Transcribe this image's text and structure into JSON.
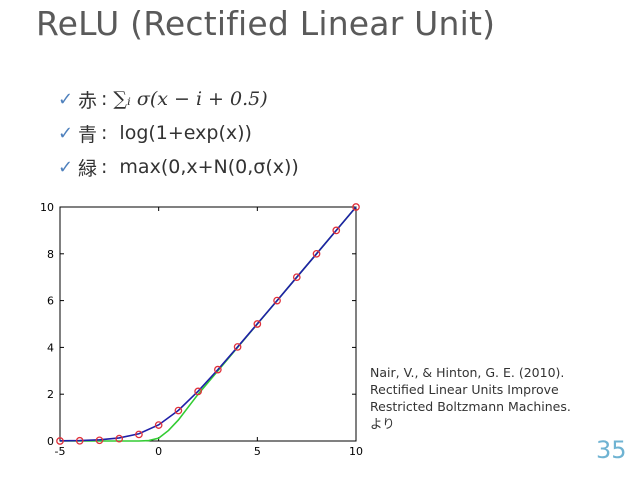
{
  "slide": {
    "title": "ReLU (Rectified Linear Unit)",
    "page_number": "35",
    "bullets": [
      {
        "check": "✓",
        "color_name": "赤",
        "sep": ":",
        "text": "∑ᵢ σ(x − i + 0.5)"
      },
      {
        "check": "✓",
        "color_name": "青",
        "sep": ":",
        "text": "log(1+exp(x))"
      },
      {
        "check": "✓",
        "color_name": "緑",
        "sep": ":",
        "text": "max(0,x+N(0,σ(x))"
      }
    ],
    "citation": [
      "Nair, V., & Hinton, G. E. (2010).",
      "Rectified Linear Units Improve",
      "Restricted Boltzmann Machines.",
      "より"
    ]
  },
  "colors": {
    "title": "#5a5a5a",
    "check": "#4f81bd",
    "page_number": "#6fb3d2",
    "red_series": "#e0303a",
    "blue_series": "#1f1fa8",
    "green_series": "#33cc33"
  },
  "chart_data": {
    "type": "line",
    "title": "",
    "xlabel": "",
    "ylabel": "",
    "xlim": [
      -5,
      10
    ],
    "ylim": [
      0,
      10
    ],
    "x_ticks": [
      "-5",
      "0",
      "5",
      "10"
    ],
    "y_ticks": [
      "0",
      "2",
      "4",
      "6",
      "8",
      "10"
    ],
    "grid": false,
    "series": [
      {
        "style": "markers",
        "color": "#e0303a",
        "x": [
          -5,
          -4,
          -3,
          -2,
          -1,
          0,
          1,
          2,
          3,
          4,
          5,
          6,
          7,
          8,
          9,
          10
        ],
        "y": [
          0.0,
          0.01,
          0.03,
          0.1,
          0.28,
          0.68,
          1.3,
          2.12,
          3.05,
          4.02,
          5.0,
          6.0,
          7.0,
          8.0,
          9.0,
          10.0
        ]
      },
      {
        "style": "line",
        "color": "#1f1fa8",
        "x": [
          -5,
          -4,
          -3,
          -2,
          -1,
          0,
          1,
          2,
          3,
          4,
          5,
          6,
          7,
          8,
          9,
          10
        ],
        "y": [
          0.01,
          0.02,
          0.05,
          0.13,
          0.31,
          0.69,
          1.31,
          2.13,
          3.05,
          4.02,
          5.01,
          6.0,
          7.0,
          8.0,
          9.0,
          10.0
        ]
      },
      {
        "style": "line",
        "color": "#33cc33",
        "x": [
          -5,
          -4,
          -3,
          -2,
          -1,
          -0.5,
          0,
          0.5,
          1,
          1.5,
          2,
          3,
          4,
          5,
          6,
          7,
          8,
          9,
          10
        ],
        "y": [
          0,
          0,
          0,
          0,
          0,
          0.02,
          0.12,
          0.45,
          0.9,
          1.45,
          2.0,
          3.0,
          4.0,
          5.0,
          6.0,
          7.0,
          8.0,
          9.0,
          10.0
        ]
      }
    ]
  }
}
